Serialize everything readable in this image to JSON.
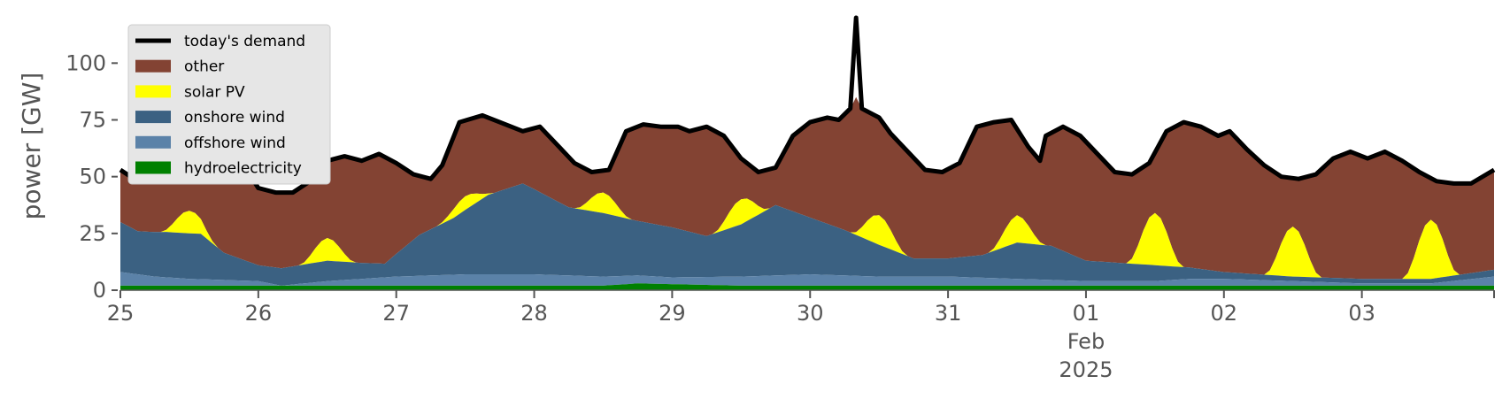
{
  "chart_data": {
    "type": "area",
    "ylabel": "power [GW]",
    "xlabel": "",
    "ylim": [
      0,
      120
    ],
    "xlim": [
      "2025-01-25T00:00",
      "2025-02-03T23:00"
    ],
    "grid": false,
    "legend_position": "top-left",
    "yticks": [
      0,
      25,
      50,
      75,
      100
    ],
    "xtick_labels": [
      {
        "x": "2025-01-25",
        "label": "25"
      },
      {
        "x": "2025-01-26",
        "label": "26"
      },
      {
        "x": "2025-01-27",
        "label": "27"
      },
      {
        "x": "2025-01-28",
        "label": "28"
      },
      {
        "x": "2025-01-29",
        "label": "29"
      },
      {
        "x": "2025-01-30",
        "label": "30"
      },
      {
        "x": "2025-01-31",
        "label": "31"
      },
      {
        "x": "2025-02-01",
        "label": "01",
        "sub": [
          "Feb",
          "2025"
        ]
      },
      {
        "x": "2025-02-02",
        "label": "02"
      },
      {
        "x": "2025-02-03",
        "label": "03"
      }
    ],
    "series": [
      {
        "name": "hydroelectricity",
        "color": "#008000",
        "kind": "stack",
        "points": [
          [
            "2025-01-25T00:00",
            2
          ],
          [
            "2025-01-28T12:00",
            2
          ],
          [
            "2025-01-28T18:00",
            3
          ],
          [
            "2025-01-29T12:00",
            2
          ],
          [
            "2025-01-30T12:00",
            2
          ],
          [
            "2025-01-31T12:00",
            2
          ],
          [
            "2025-02-01T12:00",
            2
          ],
          [
            "2025-02-02T12:00",
            2
          ],
          [
            "2025-02-03T00:00",
            2
          ],
          [
            "2025-02-03T23:00",
            2
          ]
        ]
      },
      {
        "name": "offshore wind",
        "color": "#5b82a8",
        "kind": "stack",
        "points": [
          [
            "2025-01-25T00:00",
            6
          ],
          [
            "2025-01-25T06:00",
            4
          ],
          [
            "2025-01-25T12:00",
            3
          ],
          [
            "2025-01-26T00:00",
            2
          ],
          [
            "2025-01-26T04:00",
            0
          ],
          [
            "2025-01-26T12:00",
            2
          ],
          [
            "2025-01-26T18:00",
            3
          ],
          [
            "2025-01-27T00:00",
            4
          ],
          [
            "2025-01-27T12:00",
            5
          ],
          [
            "2025-01-28T00:00",
            5
          ],
          [
            "2025-01-28T12:00",
            4
          ],
          [
            "2025-01-29T00:00",
            3
          ],
          [
            "2025-01-29T12:00",
            4
          ],
          [
            "2025-01-30T00:00",
            5
          ],
          [
            "2025-01-30T12:00",
            4
          ],
          [
            "2025-01-31T00:00",
            4
          ],
          [
            "2025-01-31T12:00",
            3
          ],
          [
            "2025-02-01T00:00",
            2
          ],
          [
            "2025-02-01T12:00",
            2
          ],
          [
            "2025-02-01T18:00",
            3
          ],
          [
            "2025-02-02T00:00",
            3
          ],
          [
            "2025-02-02T12:00",
            2
          ],
          [
            "2025-02-03T00:00",
            1
          ],
          [
            "2025-02-03T12:00",
            1
          ],
          [
            "2025-02-03T23:00",
            4
          ]
        ]
      },
      {
        "name": "onshore wind",
        "color": "#3b6182",
        "kind": "stack",
        "points": [
          [
            "2025-01-25T00:00",
            22
          ],
          [
            "2025-01-25T03:00",
            19
          ],
          [
            "2025-01-25T08:00",
            20
          ],
          [
            "2025-01-25T14:00",
            20
          ],
          [
            "2025-01-25T18:00",
            12
          ],
          [
            "2025-01-26T00:00",
            7
          ],
          [
            "2025-01-26T06:00",
            8
          ],
          [
            "2025-01-26T12:00",
            9
          ],
          [
            "2025-01-26T18:00",
            7
          ],
          [
            "2025-01-26T22:00",
            6
          ],
          [
            "2025-01-27T04:00",
            18
          ],
          [
            "2025-01-27T10:00",
            25
          ],
          [
            "2025-01-27T16:00",
            35
          ],
          [
            "2025-01-27T22:00",
            40
          ],
          [
            "2025-01-28T06:00",
            30
          ],
          [
            "2025-01-28T12:00",
            28
          ],
          [
            "2025-01-28T18:00",
            24
          ],
          [
            "2025-01-29T00:00",
            22
          ],
          [
            "2025-01-29T06:00",
            18
          ],
          [
            "2025-01-29T12:00",
            23
          ],
          [
            "2025-01-29T18:00",
            31
          ],
          [
            "2025-01-30T00:00",
            25
          ],
          [
            "2025-01-30T06:00",
            20
          ],
          [
            "2025-01-30T12:00",
            14
          ],
          [
            "2025-01-30T18:00",
            8
          ],
          [
            "2025-01-31T00:00",
            8
          ],
          [
            "2025-01-31T06:00",
            10
          ],
          [
            "2025-01-31T12:00",
            16
          ],
          [
            "2025-01-31T18:00",
            15
          ],
          [
            "2025-02-01T00:00",
            9
          ],
          [
            "2025-02-01T12:00",
            7
          ],
          [
            "2025-02-02T00:00",
            3
          ],
          [
            "2025-02-02T12:00",
            2
          ],
          [
            "2025-02-03T00:00",
            2
          ],
          [
            "2025-02-03T12:00",
            2
          ],
          [
            "2025-02-03T23:00",
            3
          ]
        ]
      },
      {
        "name": "solar PV",
        "color": "#ffff00",
        "kind": "stack",
        "peaks": [
          [
            "2025-01-25T12:00",
            10
          ],
          [
            "2025-01-26T12:00",
            10
          ],
          [
            "2025-01-27T12:00",
            6
          ],
          [
            "2025-01-28T12:00",
            9
          ],
          [
            "2025-01-29T12:00",
            11
          ],
          [
            "2025-01-30T12:00",
            13
          ],
          [
            "2025-01-31T12:00",
            12
          ],
          [
            "2025-02-01T12:00",
            23
          ],
          [
            "2025-02-02T12:00",
            22
          ],
          [
            "2025-02-03T12:00",
            26
          ]
        ]
      },
      {
        "name": "other",
        "color": "#834333",
        "kind": "fill_to_demand"
      },
      {
        "name": "today's demand",
        "color": "#000000",
        "kind": "line",
        "points": [
          [
            "2025-01-25T00:00",
            53
          ],
          [
            "2025-01-25T03:00",
            48
          ],
          [
            "2025-01-25T06:00",
            50
          ],
          [
            "2025-01-25T09:00",
            57
          ],
          [
            "2025-01-25T12:00",
            63
          ],
          [
            "2025-01-25T15:00",
            60
          ],
          [
            "2025-01-25T18:00",
            61
          ],
          [
            "2025-01-25T21:00",
            57
          ],
          [
            "2025-01-26T00:00",
            45
          ],
          [
            "2025-01-26T03:00",
            43
          ],
          [
            "2025-01-26T06:00",
            43
          ],
          [
            "2025-01-26T09:00",
            48
          ],
          [
            "2025-01-26T12:00",
            57
          ],
          [
            "2025-01-26T15:00",
            59
          ],
          [
            "2025-01-26T18:00",
            57
          ],
          [
            "2025-01-26T21:00",
            60
          ],
          [
            "2025-01-27T00:00",
            56
          ],
          [
            "2025-01-27T03:00",
            51
          ],
          [
            "2025-01-27T06:00",
            49
          ],
          [
            "2025-01-27T08:00",
            55
          ],
          [
            "2025-01-27T11:00",
            74
          ],
          [
            "2025-01-27T15:00",
            77
          ],
          [
            "2025-01-27T18:00",
            74
          ],
          [
            "2025-01-27T22:00",
            70
          ],
          [
            "2025-01-28T01:00",
            72
          ],
          [
            "2025-01-28T04:00",
            64
          ],
          [
            "2025-01-28T07:00",
            56
          ],
          [
            "2025-01-28T10:00",
            52
          ],
          [
            "2025-01-28T13:00",
            53
          ],
          [
            "2025-01-28T16:00",
            70
          ],
          [
            "2025-01-28T19:00",
            73
          ],
          [
            "2025-01-28T22:00",
            72
          ],
          [
            "2025-01-29T01:00",
            72
          ],
          [
            "2025-01-29T03:00",
            70
          ],
          [
            "2025-01-29T06:00",
            72
          ],
          [
            "2025-01-29T09:00",
            68
          ],
          [
            "2025-01-29T12:00",
            58
          ],
          [
            "2025-01-29T15:00",
            52
          ],
          [
            "2025-01-29T18:00",
            54
          ],
          [
            "2025-01-29T21:00",
            68
          ],
          [
            "2025-01-30T00:00",
            74
          ],
          [
            "2025-01-30T03:00",
            76
          ],
          [
            "2025-01-30T05:00",
            75
          ],
          [
            "2025-01-30T07:00",
            80
          ],
          [
            "2025-01-30T08:00",
            122
          ],
          [
            "2025-01-30T09:00",
            80
          ],
          [
            "2025-01-30T12:00",
            76
          ],
          [
            "2025-01-30T14:00",
            69
          ],
          [
            "2025-01-30T17:00",
            61
          ],
          [
            "2025-01-30T20:00",
            53
          ],
          [
            "2025-01-30T23:00",
            52
          ],
          [
            "2025-01-31T02:00",
            56
          ],
          [
            "2025-01-31T05:00",
            72
          ],
          [
            "2025-01-31T08:00",
            74
          ],
          [
            "2025-01-31T11:00",
            75
          ],
          [
            "2025-01-31T14:00",
            63
          ],
          [
            "2025-01-31T16:00",
            57
          ],
          [
            "2025-01-31T17:00",
            68
          ],
          [
            "2025-01-31T20:00",
            72
          ],
          [
            "2025-01-31T23:00",
            68
          ],
          [
            "2025-02-01T02:00",
            60
          ],
          [
            "2025-02-01T05:00",
            52
          ],
          [
            "2025-02-01T08:00",
            51
          ],
          [
            "2025-02-01T11:00",
            56
          ],
          [
            "2025-02-01T14:00",
            70
          ],
          [
            "2025-02-01T17:00",
            74
          ],
          [
            "2025-02-01T20:00",
            72
          ],
          [
            "2025-02-01T23:00",
            68
          ],
          [
            "2025-02-02T01:00",
            70
          ],
          [
            "2025-02-02T04:00",
            62
          ],
          [
            "2025-02-02T07:00",
            55
          ],
          [
            "2025-02-02T10:00",
            50
          ],
          [
            "2025-02-02T13:00",
            49
          ],
          [
            "2025-02-02T16:00",
            51
          ],
          [
            "2025-02-02T19:00",
            58
          ],
          [
            "2025-02-02T22:00",
            61
          ],
          [
            "2025-02-03T01:00",
            58
          ],
          [
            "2025-02-03T04:00",
            61
          ],
          [
            "2025-02-03T07:00",
            57
          ],
          [
            "2025-02-03T10:00",
            52
          ],
          [
            "2025-02-03T13:00",
            48
          ],
          [
            "2025-02-03T16:00",
            47
          ],
          [
            "2025-02-03T19:00",
            47
          ],
          [
            "2025-02-03T23:00",
            53
          ]
        ]
      }
    ]
  }
}
